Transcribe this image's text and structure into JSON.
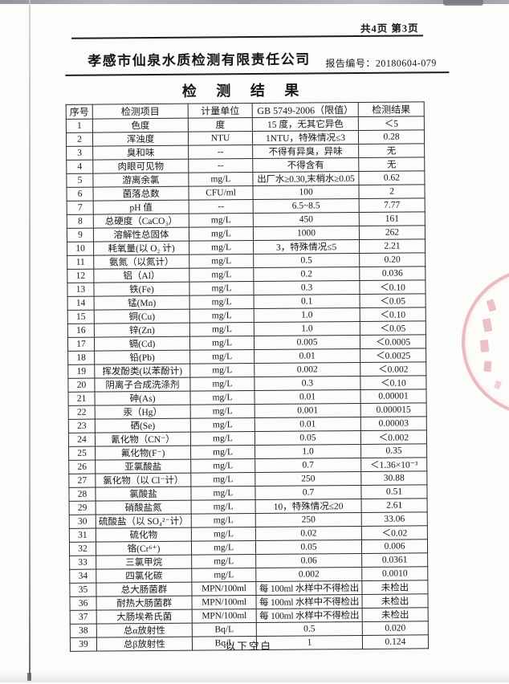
{
  "page": {
    "pagination": "共4页 第3页",
    "company": "孝感市仙泉水质检测有限责任公司",
    "report_label": "报告编号：",
    "report_number": "20180604-079",
    "title": "检 测 结 果",
    "below_blank": "以下空白"
  },
  "table": {
    "headers": [
      "序号",
      "检测项目",
      "计量单位",
      "GB 5749-2006（限值）",
      "检测结果"
    ],
    "rows": [
      [
        "1",
        "色度",
        "度",
        "15 度，无其它异色",
        "＜5"
      ],
      [
        "2",
        "浑浊度",
        "NTU",
        "1NTU，特殊情况≤3",
        "0.28"
      ],
      [
        "3",
        "臭和味",
        "--",
        "不得有异臭，异味",
        "无"
      ],
      [
        "4",
        "肉眼可见物",
        "--",
        "不得含有",
        "无"
      ],
      [
        "5",
        "游离余氯",
        "mg/L",
        "出厂水≥0.30,末梢水≥0.05",
        "0.62"
      ],
      [
        "6",
        "菌落总数",
        "CFU/ml",
        "100",
        "2"
      ],
      [
        "7",
        "pH 值",
        "--",
        "6.5~8.5",
        "7.77"
      ],
      [
        "8",
        "总硬度（CaCO₃）",
        "mg/L",
        "450",
        "161"
      ],
      [
        "9",
        "溶解性总固体",
        "mg/L",
        "1000",
        "262"
      ],
      [
        "10",
        "耗氧量(以 O₂ 计)",
        "mg/L",
        "3，特殊情况≤5",
        "2.21"
      ],
      [
        "11",
        "氨氮（以氮计）",
        "mg/L",
        "0.5",
        "0.20"
      ],
      [
        "12",
        "铝（Al）",
        "mg/L",
        "0.2",
        "0.036"
      ],
      [
        "13",
        "铁(Fe)",
        "mg/L",
        "0.3",
        "＜0.10"
      ],
      [
        "14",
        "锰(Mn)",
        "mg/L",
        "0.1",
        "＜0.05"
      ],
      [
        "15",
        "铜(Cu)",
        "mg/L",
        "1.0",
        "＜0.10"
      ],
      [
        "16",
        "锌(Zn)",
        "mg/L",
        "1.0",
        "＜0.05"
      ],
      [
        "17",
        "镉(Cd)",
        "mg/L",
        "0.005",
        "＜0.0005"
      ],
      [
        "18",
        "铅(Pb)",
        "mg/L",
        "0.01",
        "＜0.0025"
      ],
      [
        "19",
        "挥发酚类(以苯酚计)",
        "mg/L",
        "0.002",
        "＜0.002"
      ],
      [
        "20",
        "阴离子合成洗涤剂",
        "mg/L",
        "0.3",
        "＜0.10"
      ],
      [
        "21",
        "砷(As)",
        "mg/L",
        "0.01",
        "0.00001"
      ],
      [
        "22",
        "汞（Hg）",
        "mg/L",
        "0.001",
        "0.000015"
      ],
      [
        "23",
        "硒(Se)",
        "mg/L",
        "0.01",
        "0.00003"
      ],
      [
        "24",
        "氰化物（CN⁻）",
        "mg/L",
        "0.05",
        "＜0.002"
      ],
      [
        "25",
        "氟化物(F⁻)",
        "mg/L",
        "1.0",
        "0.35"
      ],
      [
        "26",
        "亚氯酸盐",
        "mg/L",
        "0.7",
        "＜1.36×10⁻³"
      ],
      [
        "27",
        "氯化物（以 Cl⁻计）",
        "mg/L",
        "250",
        "30.88"
      ],
      [
        "28",
        "氯酸盐",
        "mg/L",
        "0.7",
        "0.51"
      ],
      [
        "29",
        "硝酸盐氮",
        "mg/L",
        "10，特殊情况≤20",
        "2.61"
      ],
      [
        "30",
        "硫酸盐（以 SO₄²⁻计）",
        "mg/L",
        "250",
        "33.06"
      ],
      [
        "31",
        "硫化物",
        "mg/L",
        "0.02",
        "＜0.02"
      ],
      [
        "32",
        "铬(Cr⁶⁺)",
        "mg/L",
        "0.05",
        "0.006"
      ],
      [
        "33",
        "三氯甲烷",
        "mg/L",
        "0.06",
        "0.0361"
      ],
      [
        "34",
        "四氯化碳",
        "mg/L",
        "0.002",
        "0.0010"
      ],
      [
        "35",
        "总大肠菌群",
        "MPN/100ml",
        "每 100ml 水样中不得检出",
        "未检出"
      ],
      [
        "36",
        "耐热大肠菌群",
        "MPN/100ml",
        "每 100ml 水样中不得检出",
        "未检出"
      ],
      [
        "37",
        "大肠埃希氏菌",
        "MPN/100ml",
        "每 100ml 水样中不得检出",
        "未检出"
      ],
      [
        "38",
        "总α放射性",
        "Bq/L",
        "0.5",
        "0.020"
      ],
      [
        "39",
        "总β放射性",
        "Bq/L",
        "1",
        "0.124"
      ]
    ]
  },
  "stamp": {
    "icon": "red-seal-stamp",
    "color": "#cd3a54"
  }
}
